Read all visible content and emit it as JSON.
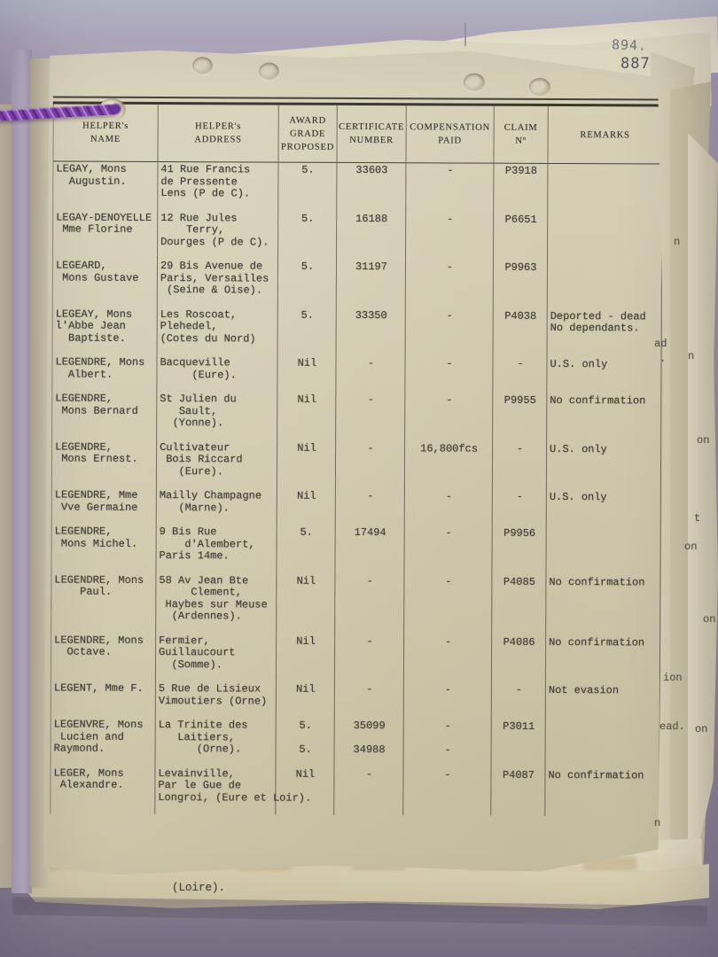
{
  "page": {
    "stamp_previous": "894.",
    "stamp_current": "887"
  },
  "table": {
    "columns": [
      {
        "id": "name",
        "label": "HELPER's\nNAME"
      },
      {
        "id": "address",
        "label": "HELPER's\nADDRESS"
      },
      {
        "id": "award",
        "label": "AWARD\nGRADE\nPROPOSED"
      },
      {
        "id": "certificate",
        "label": "CERTIFICATE\nNUMBER"
      },
      {
        "id": "compensation",
        "label": "COMPENSATION\nPAID"
      },
      {
        "id": "claim",
        "label": "CLAIM\nNº"
      },
      {
        "id": "remarks",
        "label": "REMARKS"
      }
    ],
    "rows": [
      {
        "name": "LEGAY, Mons\n  Augustin.",
        "address": "41 Rue Francis\nde Pressente\nLens (P de C).",
        "award": "5.",
        "certificate": "33603",
        "compensation": "-",
        "claim": "P3918",
        "remarks": ""
      },
      {
        "name": "LEGAY-DENOYELLE\n Mme Florine",
        "address": "12 Rue Jules\n    Terry,\nDourges (P de C).",
        "award": "5.",
        "certificate": "16188",
        "compensation": "-",
        "claim": "P6651",
        "remarks": ""
      },
      {
        "name": "LEGEARD,\n Mons Gustave",
        "address": "29 Bis Avenue de\nParis, Versailles\n (Seine & Oise).",
        "award": "5.",
        "certificate": "31197",
        "compensation": "-",
        "claim": "P9963",
        "remarks": ""
      },
      {
        "name": "LEGEAY, Mons\nl'Abbe Jean\n  Baptiste.",
        "address": "Les Roscoat,\nPlehedel,\n(Cotes du Nord)",
        "award": "5.",
        "certificate": "33350",
        "compensation": "-",
        "claim": "P4038",
        "remarks": "Deported - dead\nNo dependants."
      },
      {
        "name": "LEGENDRE, Mons\n  Albert.",
        "address": "Bacqueville\n     (Eure).",
        "award": "Nil",
        "certificate": "-",
        "compensation": "-",
        "claim": "-",
        "remarks": "U.S. only"
      },
      {
        "name": "LEGENDRE,\n Mons Bernard",
        "address": "St Julien du\n   Sault,\n  (Yonne).",
        "award": "Nil",
        "certificate": "-",
        "compensation": "-",
        "claim": "P9955",
        "remarks": "No confirmation"
      },
      {
        "name": "LEGENDRE,\n Mons Ernest.",
        "address": "Cultivateur\n Bois Riccard\n   (Eure).",
        "award": "Nil",
        "certificate": "-",
        "compensation": "16,800fcs",
        "claim": "-",
        "remarks": "U.S. only"
      },
      {
        "name": "LEGENDRE, Mme\n Vve Germaine",
        "address": "Mailly Champagne\n   (Marne).",
        "award": "Nil",
        "certificate": "-",
        "compensation": "-",
        "claim": "-",
        "remarks": "U.S. only"
      },
      {
        "name": "LEGENDRE,\n Mons Michel.",
        "address": "9 Bis Rue\n    d'Alembert,\nParis 14me.",
        "award": "5.",
        "certificate": "17494",
        "compensation": "-",
        "claim": "P9956",
        "remarks": ""
      },
      {
        "name": "LEGENDRE, Mons\n    Paul.",
        "address": "58 Av Jean Bte\n     Clement,\n Haybes sur Meuse\n  (Ardennes).",
        "award": "Nil",
        "certificate": "-",
        "compensation": "-",
        "claim": "P4085",
        "remarks": "No confirmation"
      },
      {
        "name": "LEGENDRE, Mons\n  Octave.",
        "address": "Fermier,\nGuillaucourt\n  (Somme).",
        "award": "Nil",
        "certificate": "-",
        "compensation": "-",
        "claim": "P4086",
        "remarks": "No confirmation"
      },
      {
        "name": "LEGENT, Mme F.",
        "address": "5 Rue de Lisieux\nVimoutiers (Orne)",
        "award": "Nil",
        "certificate": "-",
        "compensation": "-",
        "claim": "-",
        "remarks": "Not evasion"
      },
      {
        "name": "LEGENVRE, Mons\n Lucien and\nRaymond.",
        "address": "La Trinite des\n   Laitiers,\n      (Orne).",
        "award": "5.\n\n5.",
        "certificate": "35099\n\n34988",
        "compensation": "-\n\n-",
        "claim": "P3011",
        "remarks": ""
      },
      {
        "name": "LEGER, Mons\n Alexandre.",
        "address": "Levainville,\nPar le Gue de\nLongroi, (Eure et Loir).",
        "award": "Nil",
        "certificate": "-",
        "compensation": "-",
        "claim": "P4087",
        "remarks": "No confirmation"
      }
    ]
  },
  "underlying_page_text": "(Loire).",
  "edge_fragments": [
    "n",
    "ad",
    ".",
    "n",
    "on",
    "t",
    "on",
    "on",
    "ion",
    "ead.",
    "on",
    "n"
  ],
  "colors": {
    "background": "#9d93a6",
    "paper": "#d3ccb2",
    "under_paper": "#e2dbc1",
    "ink": "#403d36",
    "stamp": "#55545f",
    "cord": "#8a4bb4",
    "table_line": "#37322a"
  }
}
